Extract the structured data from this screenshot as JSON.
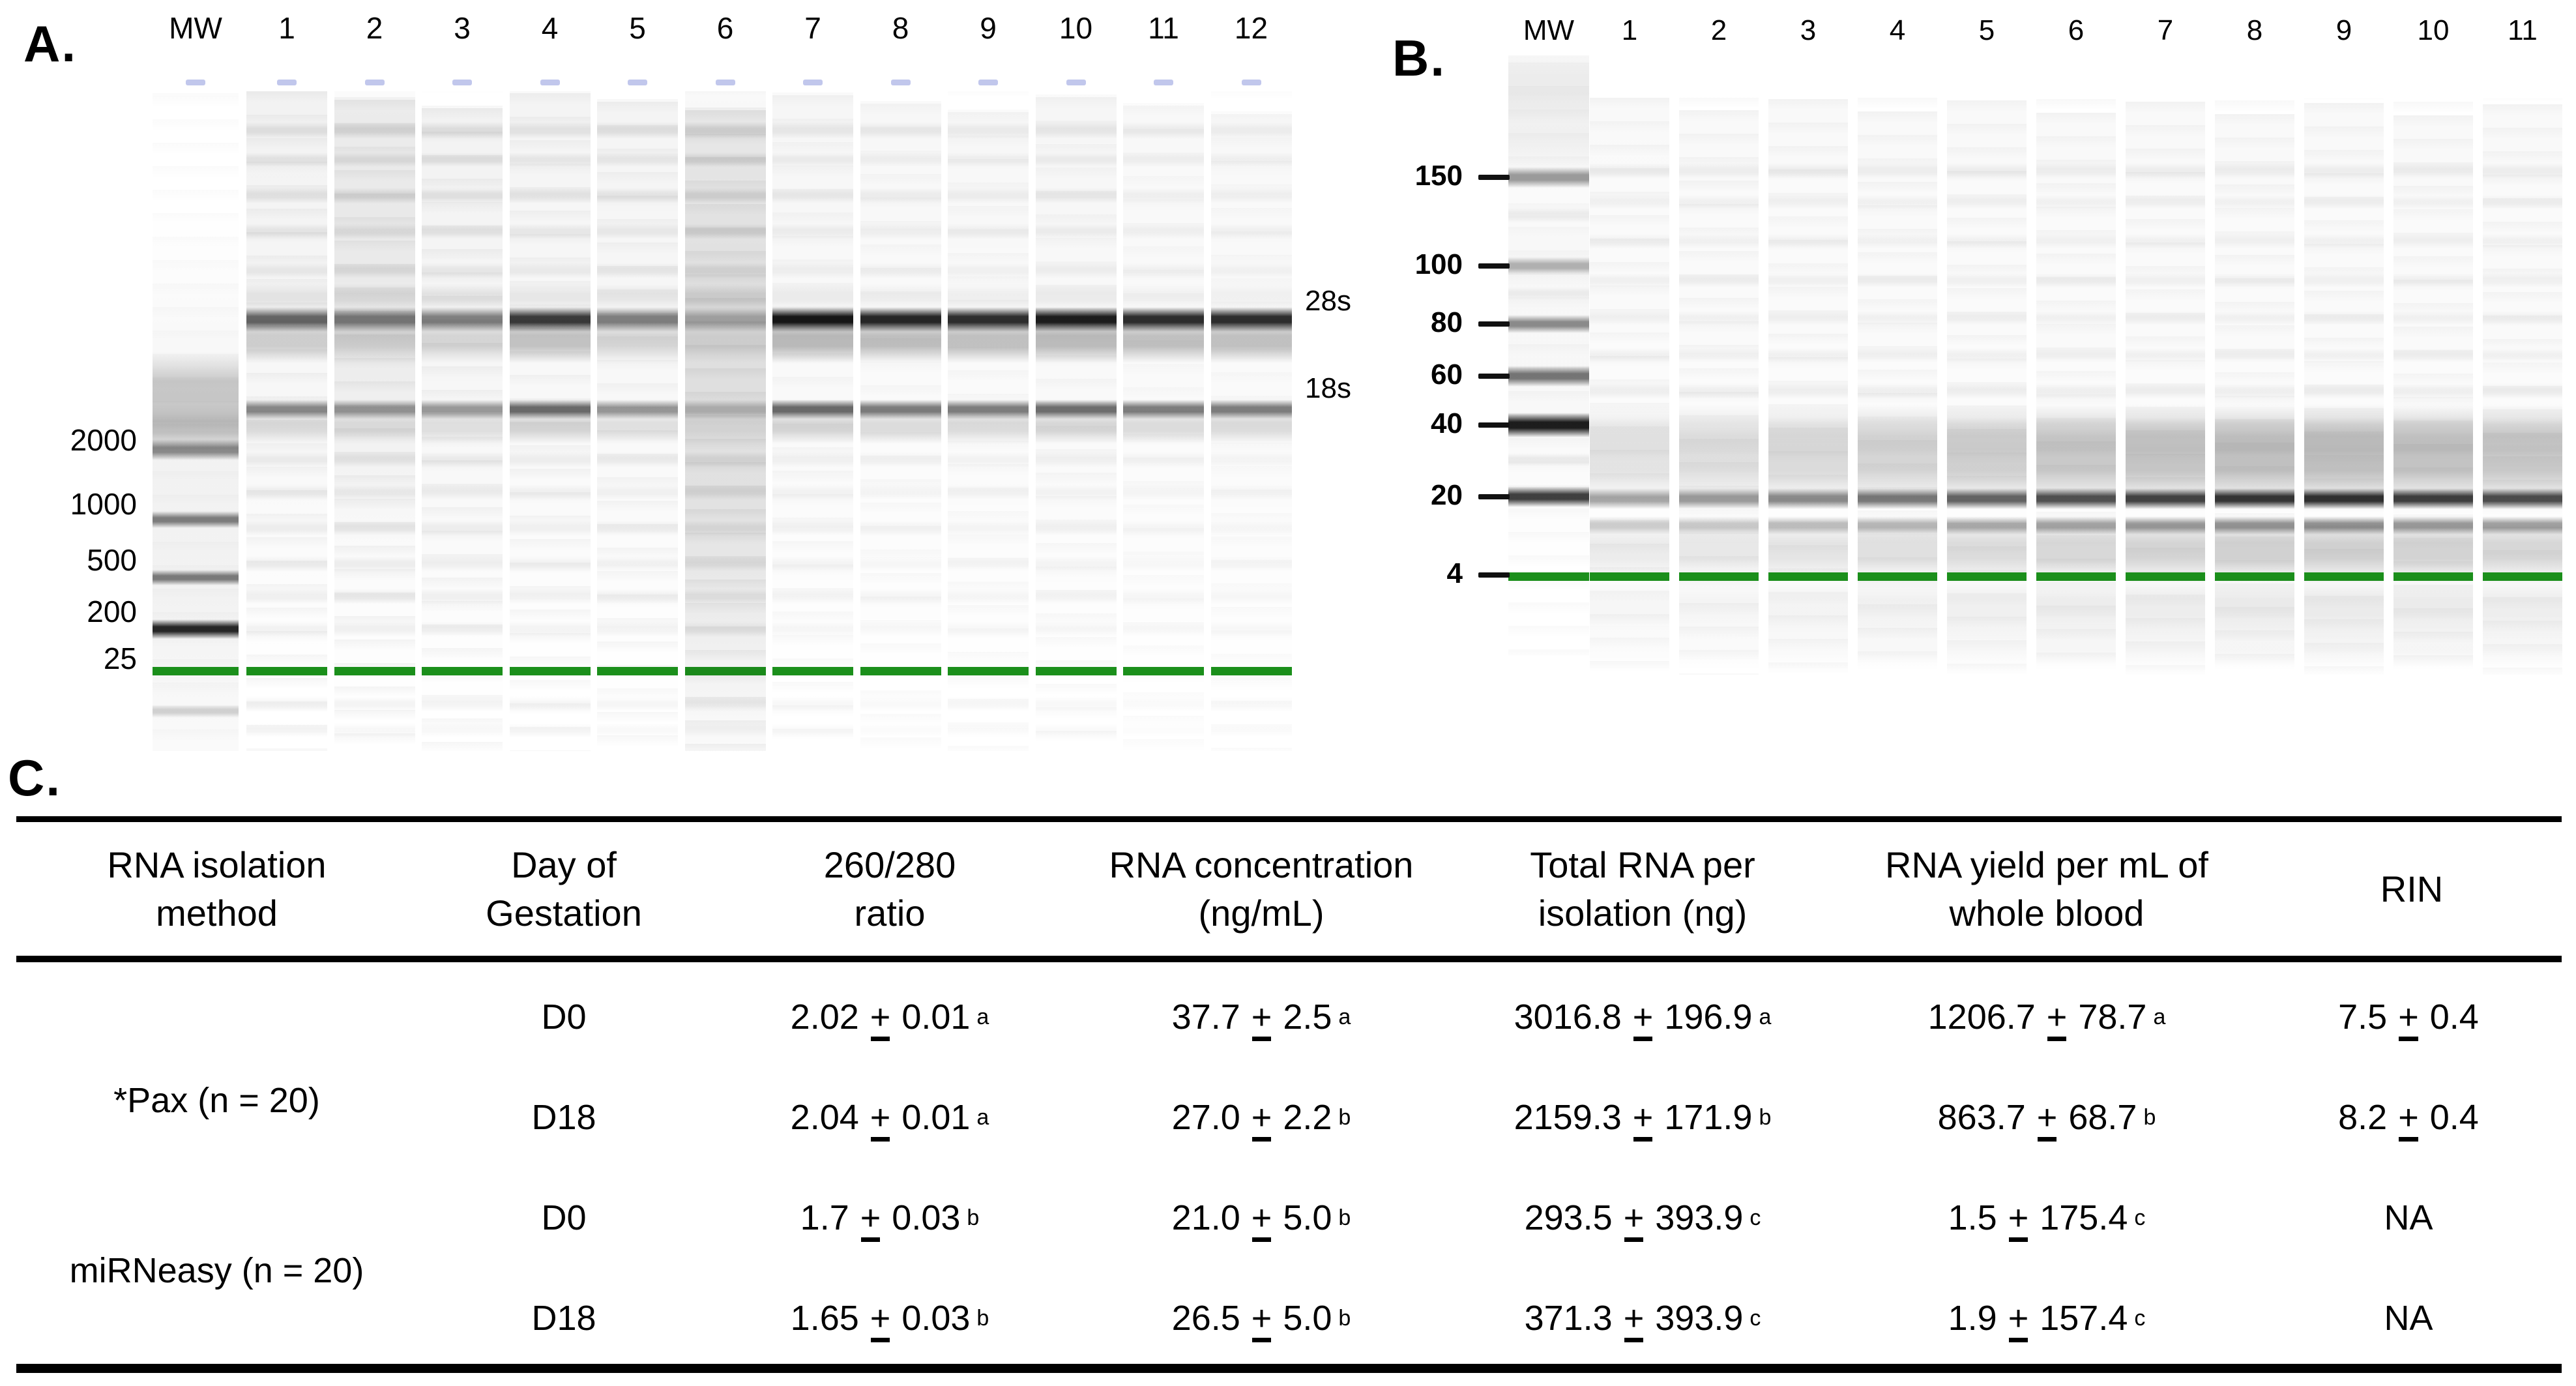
{
  "figure": {
    "panel_a": {
      "label": "A.",
      "lane_labels": [
        "MW",
        "1",
        "2",
        "3",
        "4",
        "5",
        "6",
        "7",
        "8",
        "9",
        "10",
        "11",
        "12"
      ],
      "size_markers": [
        "2000",
        "1000",
        "500",
        "200",
        "25"
      ],
      "band_labels": [
        "28s",
        "18s"
      ],
      "marker_band_color": "#1b8f1b"
    },
    "panel_b": {
      "label": "B.",
      "lane_labels": [
        "MW",
        "1",
        "2",
        "3",
        "4",
        "5",
        "6",
        "7",
        "8",
        "9",
        "10",
        "11"
      ],
      "size_markers": [
        "150",
        "100",
        "80",
        "60",
        "40",
        "20",
        "4"
      ],
      "marker_band_color": "#1b8f1b"
    },
    "panel_c": {
      "label": "C.",
      "table": {
        "headers": [
          {
            "line1": "RNA isolation",
            "line2": "method"
          },
          {
            "line1": "Day of",
            "line2": "Gestation"
          },
          {
            "line1": "260/280",
            "line2": "ratio"
          },
          {
            "line1": "RNA concentration",
            "line2": "(ng/mL)"
          },
          {
            "line1": "Total RNA per",
            "line2": "isolation (ng)"
          },
          {
            "line1": "RNA yield per mL of",
            "line2": "whole blood"
          },
          {
            "line1": "",
            "line2": "RIN"
          }
        ],
        "groups": [
          "*Pax  (n = 20)",
          "miRNeasy (n = 20)"
        ],
        "rows": [
          {
            "day": "D0",
            "values": [
              {
                "text": "2.02 ± 0.01",
                "sup": "a"
              },
              {
                "text": "37.7 ± 2.5",
                "sup": "a"
              },
              {
                "text": "3016.8 ± 196.9",
                "sup": "a"
              },
              {
                "text": "1206.7 ± 78.7",
                "sup": "a"
              },
              {
                "text": "7.5 ± 0.4",
                "sup": ""
              }
            ]
          },
          {
            "day": "D18",
            "values": [
              {
                "text": "2.04 ± 0.01",
                "sup": "a"
              },
              {
                "text": "27.0 ± 2.2",
                "sup": "b"
              },
              {
                "text": "2159.3 ± 171.9",
                "sup": "b"
              },
              {
                "text": "863.7 ± 68.7",
                "sup": "b"
              },
              {
                "text": "8.2 ± 0.4",
                "sup": ""
              }
            ]
          },
          {
            "day": "D0",
            "values": [
              {
                "text": "1.7 ± 0.03",
                "sup": "b"
              },
              {
                "text": "21.0 ± 5.0",
                "sup": "b"
              },
              {
                "text": "293.5 ± 393.9",
                "sup": "c"
              },
              {
                "text": "1.5 ± 175.4",
                "sup": "c"
              },
              {
                "text": "NA",
                "sup": ""
              }
            ]
          },
          {
            "day": "D18",
            "values": [
              {
                "text": "1.65 ± 0.03",
                "sup": "b"
              },
              {
                "text": "26.5 ± 5.0",
                "sup": "b"
              },
              {
                "text": "371.3 ± 393.9",
                "sup": "c"
              },
              {
                "text": "1.9 ± 157.4",
                "sup": "c"
              },
              {
                "text": "NA",
                "sup": ""
              }
            ]
          }
        ]
      }
    }
  }
}
